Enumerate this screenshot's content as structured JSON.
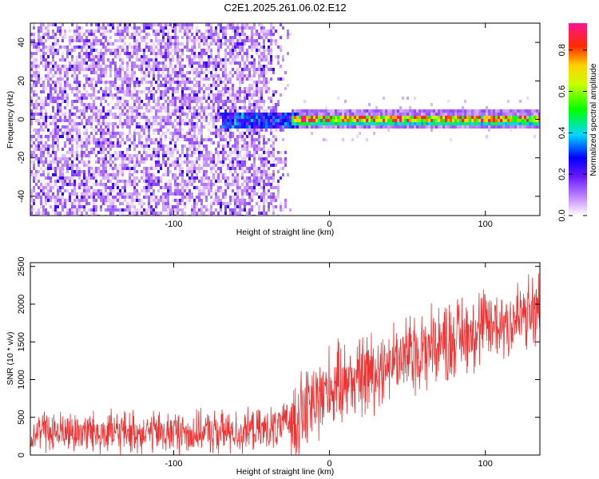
{
  "title": "C2E1.2025.261.06.02.E12",
  "chart_data": [
    {
      "type": "heatmap",
      "xlabel": "Height of straight line (km)",
      "ylabel": "Frequency (Hz)",
      "xlim": [
        -192,
        135
      ],
      "ylim": [
        -50,
        50
      ],
      "xticks": [
        -100,
        0,
        100
      ],
      "yticks": [
        -40,
        -20,
        0,
        20,
        40
      ],
      "colorbar": {
        "label": "Normalized spectral amplitude",
        "range": [
          0,
          0.93
        ],
        "ticks": [
          0.0,
          0.2,
          0.4,
          0.6,
          0.8
        ],
        "ticklabels": [
          "0.0",
          "0.2",
          "0.4",
          "0.6",
          "0.8"
        ]
      },
      "description_values": {
        "noise_region_x": [
          -192,
          -25
        ],
        "noise_amplitude_range": [
          0.02,
          0.15
        ],
        "transition_region_x": [
          -70,
          -20
        ],
        "transition_amplitude_range": [
          0.15,
          0.4
        ],
        "line_frequency_hz": 0,
        "line_region_x": [
          -25,
          135
        ],
        "line_core_amplitude_range": [
          0.45,
          0.93
        ]
      }
    },
    {
      "type": "line",
      "xlabel": "Height of straight line (km)",
      "ylabel": "SNR (10 * v/v)",
      "xlim": [
        -192,
        135
      ],
      "ylim": [
        0,
        2550
      ],
      "xticks": [
        -100,
        0,
        100
      ],
      "yticks": [
        0,
        500,
        1000,
        1500,
        2000,
        2500
      ],
      "color": "#ee3333",
      "grid": false,
      "series": [
        {
          "x": [
            -192,
            -160,
            -120,
            -80,
            -45,
            -30,
            -20,
            -10,
            0,
            20,
            40,
            60,
            80,
            100,
            120,
            135
          ],
          "y": [
            300,
            310,
            300,
            300,
            320,
            380,
            550,
            700,
            900,
            1050,
            1250,
            1400,
            1550,
            1700,
            1800,
            1900
          ]
        }
      ]
    }
  ],
  "colors": {
    "snr_line": "#ee3333",
    "axis": "#000000",
    "background": "#ffffff"
  }
}
